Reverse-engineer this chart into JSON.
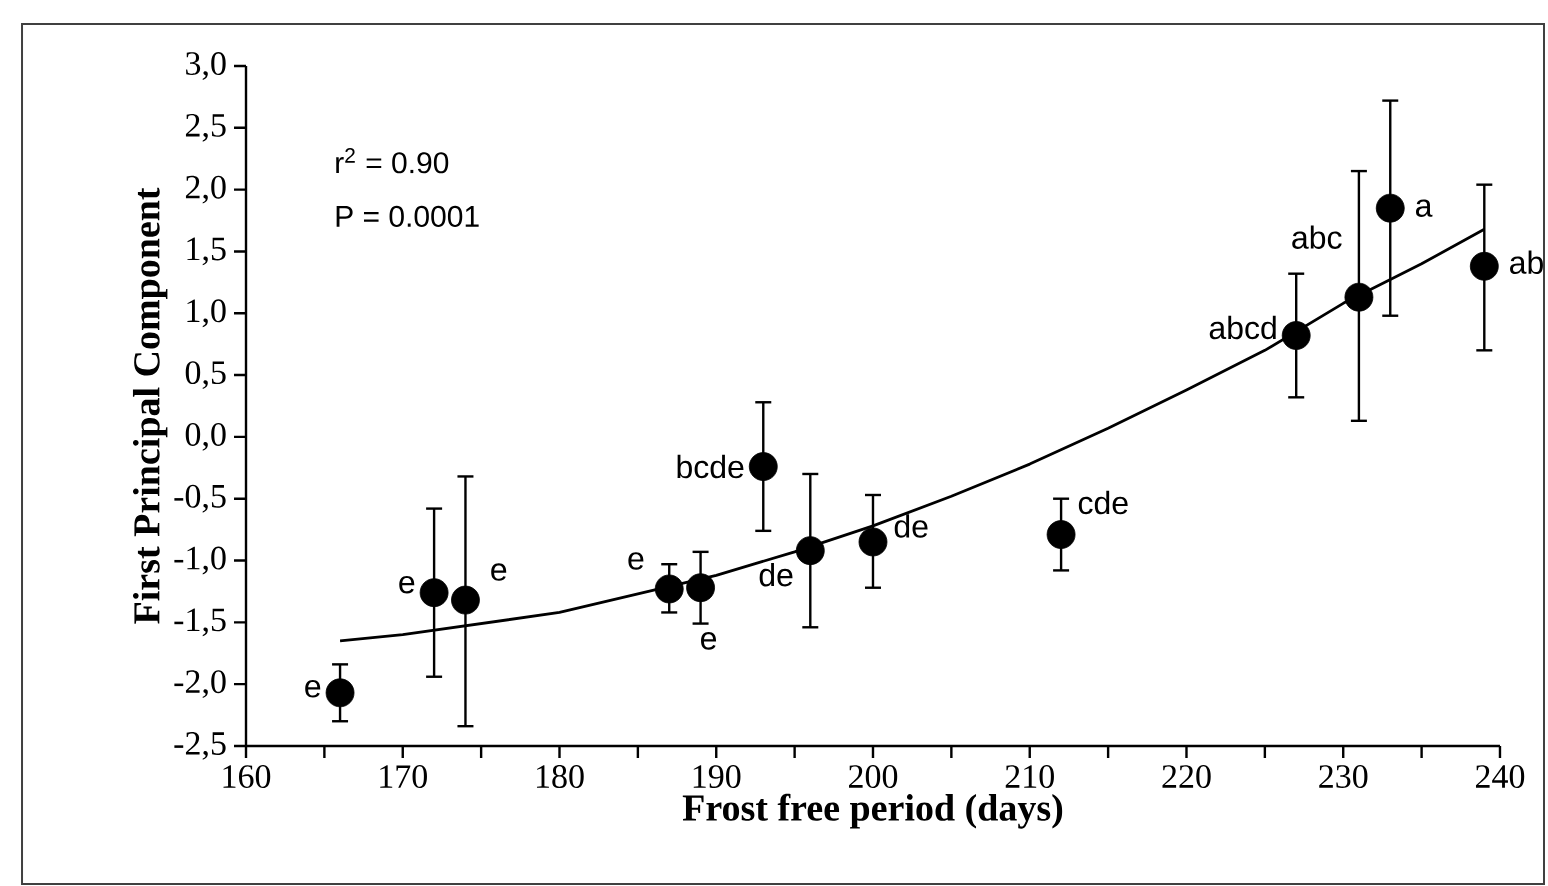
{
  "chart_data": {
    "type": "scatter",
    "xlabel": "Frost free period (days)",
    "ylabel": "First Principal Component",
    "xlim": [
      160,
      240
    ],
    "xticks": [
      160,
      170,
      180,
      190,
      200,
      210,
      220,
      230,
      240
    ],
    "ylim": [
      -2.5,
      3.0
    ],
    "yticks": [
      {
        "value": -2.5,
        "label": "-2,5"
      },
      {
        "value": -2.0,
        "label": "-2,0"
      },
      {
        "value": -1.5,
        "label": "-1,5"
      },
      {
        "value": -1.0,
        "label": "-1,0"
      },
      {
        "value": -0.5,
        "label": "-0,5"
      },
      {
        "value": 0.0,
        "label": "0,0"
      },
      {
        "value": 0.5,
        "label": "0,5"
      },
      {
        "value": 1.0,
        "label": "1,0"
      },
      {
        "value": 1.5,
        "label": "1,5"
      },
      {
        "value": 2.0,
        "label": "2,0"
      },
      {
        "value": 2.5,
        "label": "2,5"
      },
      {
        "value": 3.0,
        "label": "3,0"
      }
    ],
    "series": [
      {
        "marker": "circle",
        "color": "#000000",
        "x": [
          166,
          172,
          174,
          187,
          189,
          193,
          196,
          200,
          212,
          227,
          231,
          233,
          239
        ],
        "values": [
          -2.07,
          -1.26,
          -1.32,
          -1.23,
          -1.22,
          -0.24,
          -0.92,
          -0.85,
          -0.79,
          0.82,
          1.13,
          1.85,
          1.38
        ],
        "errors": [
          [
            -2.3,
            -1.84
          ],
          [
            -1.94,
            -0.58
          ],
          [
            -2.34,
            -0.32
          ],
          [
            -1.42,
            -1.03
          ],
          [
            -1.51,
            -0.93
          ],
          [
            -0.76,
            0.28
          ],
          [
            -1.54,
            -0.3
          ],
          [
            -1.22,
            -0.47
          ],
          [
            -1.08,
            -0.5
          ],
          [
            0.32,
            1.32
          ],
          [
            0.13,
            2.15
          ],
          [
            0.98,
            2.72
          ],
          [
            0.7,
            2.04
          ]
        ]
      },
      {
        "type": "line",
        "marker": "none",
        "color": "#000000",
        "x": [
          166,
          170,
          180,
          190,
          195,
          200,
          205,
          210,
          215,
          220,
          225,
          230,
          235,
          239
        ],
        "values": [
          -1.65,
          -1.6,
          -1.42,
          -1.12,
          -0.93,
          -0.72,
          -0.48,
          -0.22,
          0.07,
          0.38,
          0.7,
          1.08,
          1.4,
          1.68
        ]
      }
    ],
    "annotations": [
      "r$^{2}$ = 0.90",
      "P =  0.0001",
      {
        "text": "e",
        "x": 166,
        "y": -2.07
      },
      {
        "text": "e",
        "x": 172,
        "y": -1.26
      },
      {
        "text": "e",
        "x": 174,
        "y": -1.32
      },
      {
        "text": "e",
        "x": 187,
        "y": -1.23
      },
      {
        "text": "e",
        "x": 189,
        "y": -1.22
      },
      {
        "text": "bcde",
        "x": 193,
        "y": -0.24
      },
      {
        "text": "de",
        "x": 196,
        "y": -0.92
      },
      {
        "text": "de",
        "x": 200,
        "y": -0.85
      },
      {
        "text": "cde",
        "x": 212,
        "y": -0.79
      },
      {
        "text": "abcd",
        "x": 227,
        "y": 0.82
      },
      {
        "text": "abc",
        "x": 231,
        "y": 1.13
      },
      {
        "text": "a",
        "x": 233,
        "y": 1.85
      },
      {
        "text": "ab",
        "x": 239,
        "y": 1.38
      }
    ]
  }
}
